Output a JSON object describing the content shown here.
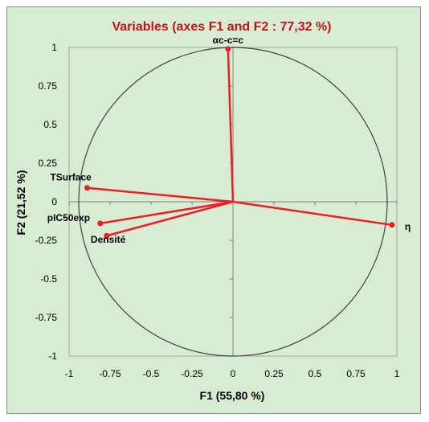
{
  "chart_data": {
    "type": "scatter",
    "title": "Variables (axes F1 and F2 : 77,32 %)",
    "xlabel": "F1 (55,80 %)",
    "ylabel": "F2 (21,52 %)",
    "xlim": [
      -1,
      1
    ],
    "ylim": [
      -1,
      1
    ],
    "xticks": [
      "-1",
      "-0.75",
      "-0.5",
      "-0.25",
      "0",
      "0.25",
      "0.5",
      "0.75",
      "1"
    ],
    "yticks": [
      "1",
      "0.75",
      "0.5",
      "0.25",
      "0",
      "-0.25",
      "-0.5",
      "-0.75",
      "-1"
    ],
    "grid": false,
    "correlation_circle": true,
    "points": [
      {
        "label": "αc-c=c",
        "x": -0.03,
        "y": 0.99
      },
      {
        "label": "TSurface",
        "x": -0.89,
        "y": 0.09
      },
      {
        "label": "pIC50exp",
        "x": -0.81,
        "y": -0.14
      },
      {
        "label": "Densité",
        "x": -0.77,
        "y": -0.22
      },
      {
        "label": "η",
        "x": 0.97,
        "y": -0.15
      }
    ],
    "colors": {
      "vector": "#ee1c24",
      "title": "#c0161b",
      "circle": "#404040",
      "axis": "#7f7f7f",
      "background": "#d7ecd2"
    }
  }
}
